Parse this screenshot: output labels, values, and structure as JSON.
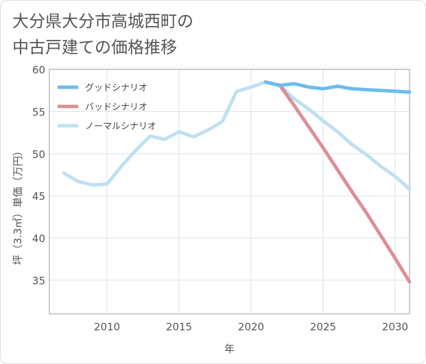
{
  "chart_data": {
    "type": "line",
    "title_lines": [
      "大分県大分市高城西町の",
      "中古戸建ての価格推移"
    ],
    "xlabel": "年",
    "ylabel": "坪（3.3㎡）単価（万円）",
    "xlim": [
      2006,
      2031
    ],
    "ylim": [
      31,
      60
    ],
    "xticks": [
      2010,
      2015,
      2020,
      2025,
      2030
    ],
    "yticks": [
      35,
      40,
      45,
      50,
      55,
      60
    ],
    "grid": true,
    "legend_position": "top-left",
    "series": [
      {
        "name": "グッドシナリオ",
        "color": "#6bbcee",
        "x": [
          2021,
          2022,
          2023,
          2024,
          2025,
          2026,
          2027,
          2028,
          2029,
          2030,
          2031
        ],
        "y": [
          58.5,
          58.1,
          58.3,
          57.9,
          57.7,
          58.0,
          57.7,
          57.6,
          57.5,
          57.4,
          57.3
        ]
      },
      {
        "name": "バッドシナリオ",
        "color": "#dc8f96",
        "x": [
          2021,
          2022,
          2023,
          2024,
          2025,
          2026,
          2027,
          2028,
          2029,
          2030,
          2031
        ],
        "y": [
          58.5,
          58.1,
          55.7,
          53.2,
          50.7,
          48.1,
          45.5,
          43.0,
          40.3,
          37.6,
          34.8
        ]
      },
      {
        "name": "ノーマルシナリオ",
        "color": "#bfe0f0",
        "x": [
          2007,
          2008,
          2009,
          2010,
          2011,
          2012,
          2013,
          2014,
          2015,
          2016,
          2017,
          2018,
          2019,
          2020,
          2021,
          2022,
          2023,
          2024,
          2025,
          2026,
          2027,
          2028,
          2029,
          2030,
          2031
        ],
        "y": [
          47.7,
          46.7,
          46.3,
          46.4,
          48.5,
          50.4,
          52.1,
          51.7,
          52.6,
          52.0,
          52.8,
          53.8,
          57.4,
          57.9,
          58.5,
          58.1,
          56.5,
          55.3,
          53.9,
          52.6,
          51.1,
          49.9,
          48.5,
          47.3,
          45.8
        ]
      }
    ]
  }
}
